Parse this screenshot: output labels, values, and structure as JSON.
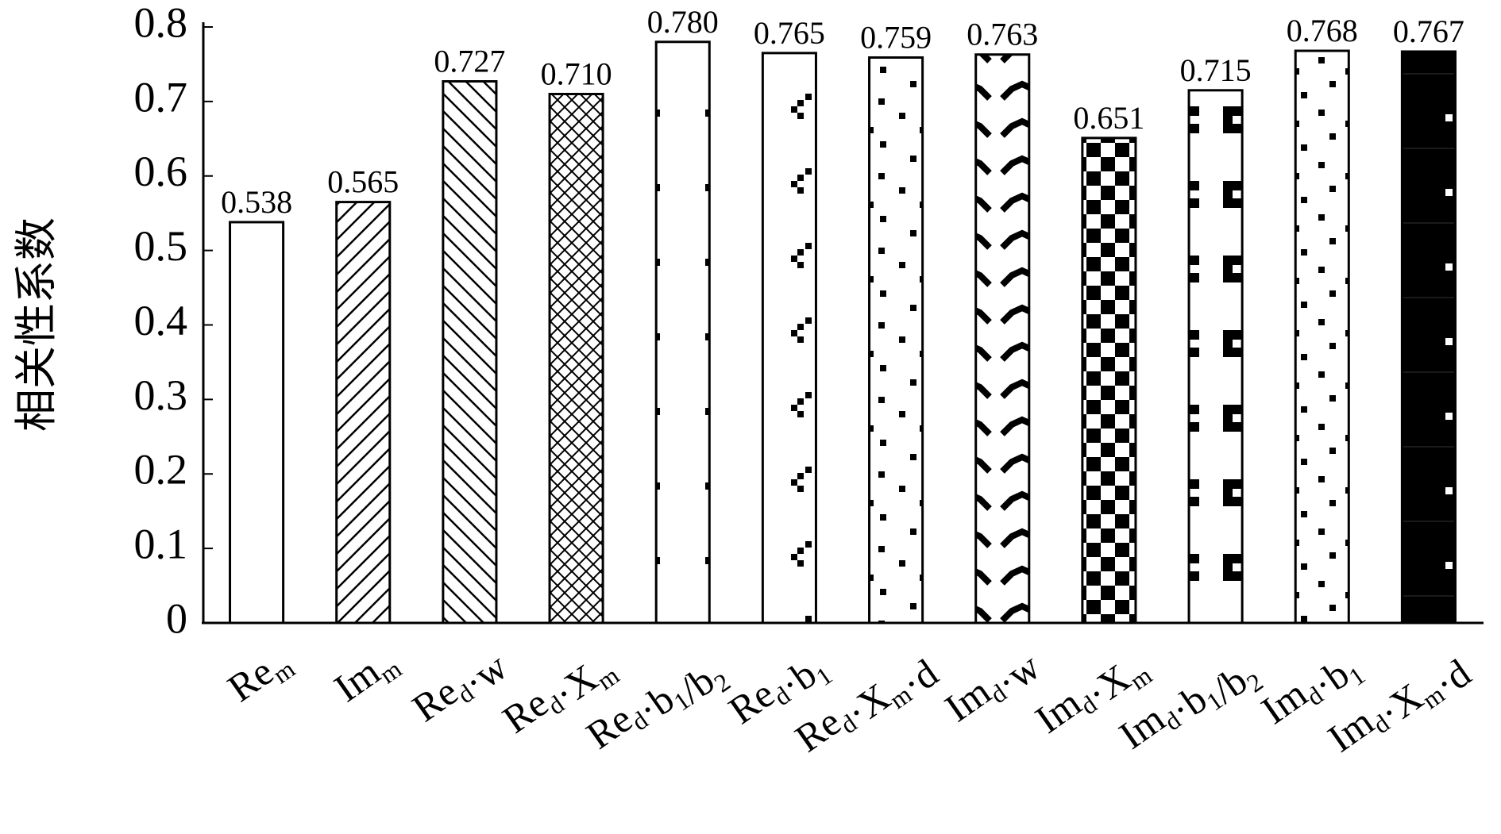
{
  "chart_data": {
    "type": "bar",
    "y_label": "相关性系数",
    "categories": [
      "Rem",
      "Imm",
      "Red·w",
      "Red·Xm",
      "Red·b1/b2",
      "Red·b1",
      "Red·Xm·d",
      "Imd·w",
      "Imd·Xm",
      "Imd·b1/b2",
      "Imd·b1",
      "Imd·Xm·d"
    ],
    "values": [
      0.538,
      0.565,
      0.727,
      0.71,
      0.78,
      0.765,
      0.759,
      0.763,
      0.651,
      0.715,
      0.768,
      0.767
    ],
    "value_labels": [
      "0.538",
      "0.565",
      "0.727",
      "0.710",
      "0.780",
      "0.765",
      "0.759",
      "0.763",
      "0.651",
      "0.715",
      "0.768",
      "0.767"
    ],
    "color": "#000000",
    "ylim": [
      0,
      0.8
    ],
    "yticks": [
      0,
      0.1,
      0.2,
      0.3,
      0.4,
      0.5,
      0.6,
      0.7,
      0.8
    ],
    "grid": false
  }
}
